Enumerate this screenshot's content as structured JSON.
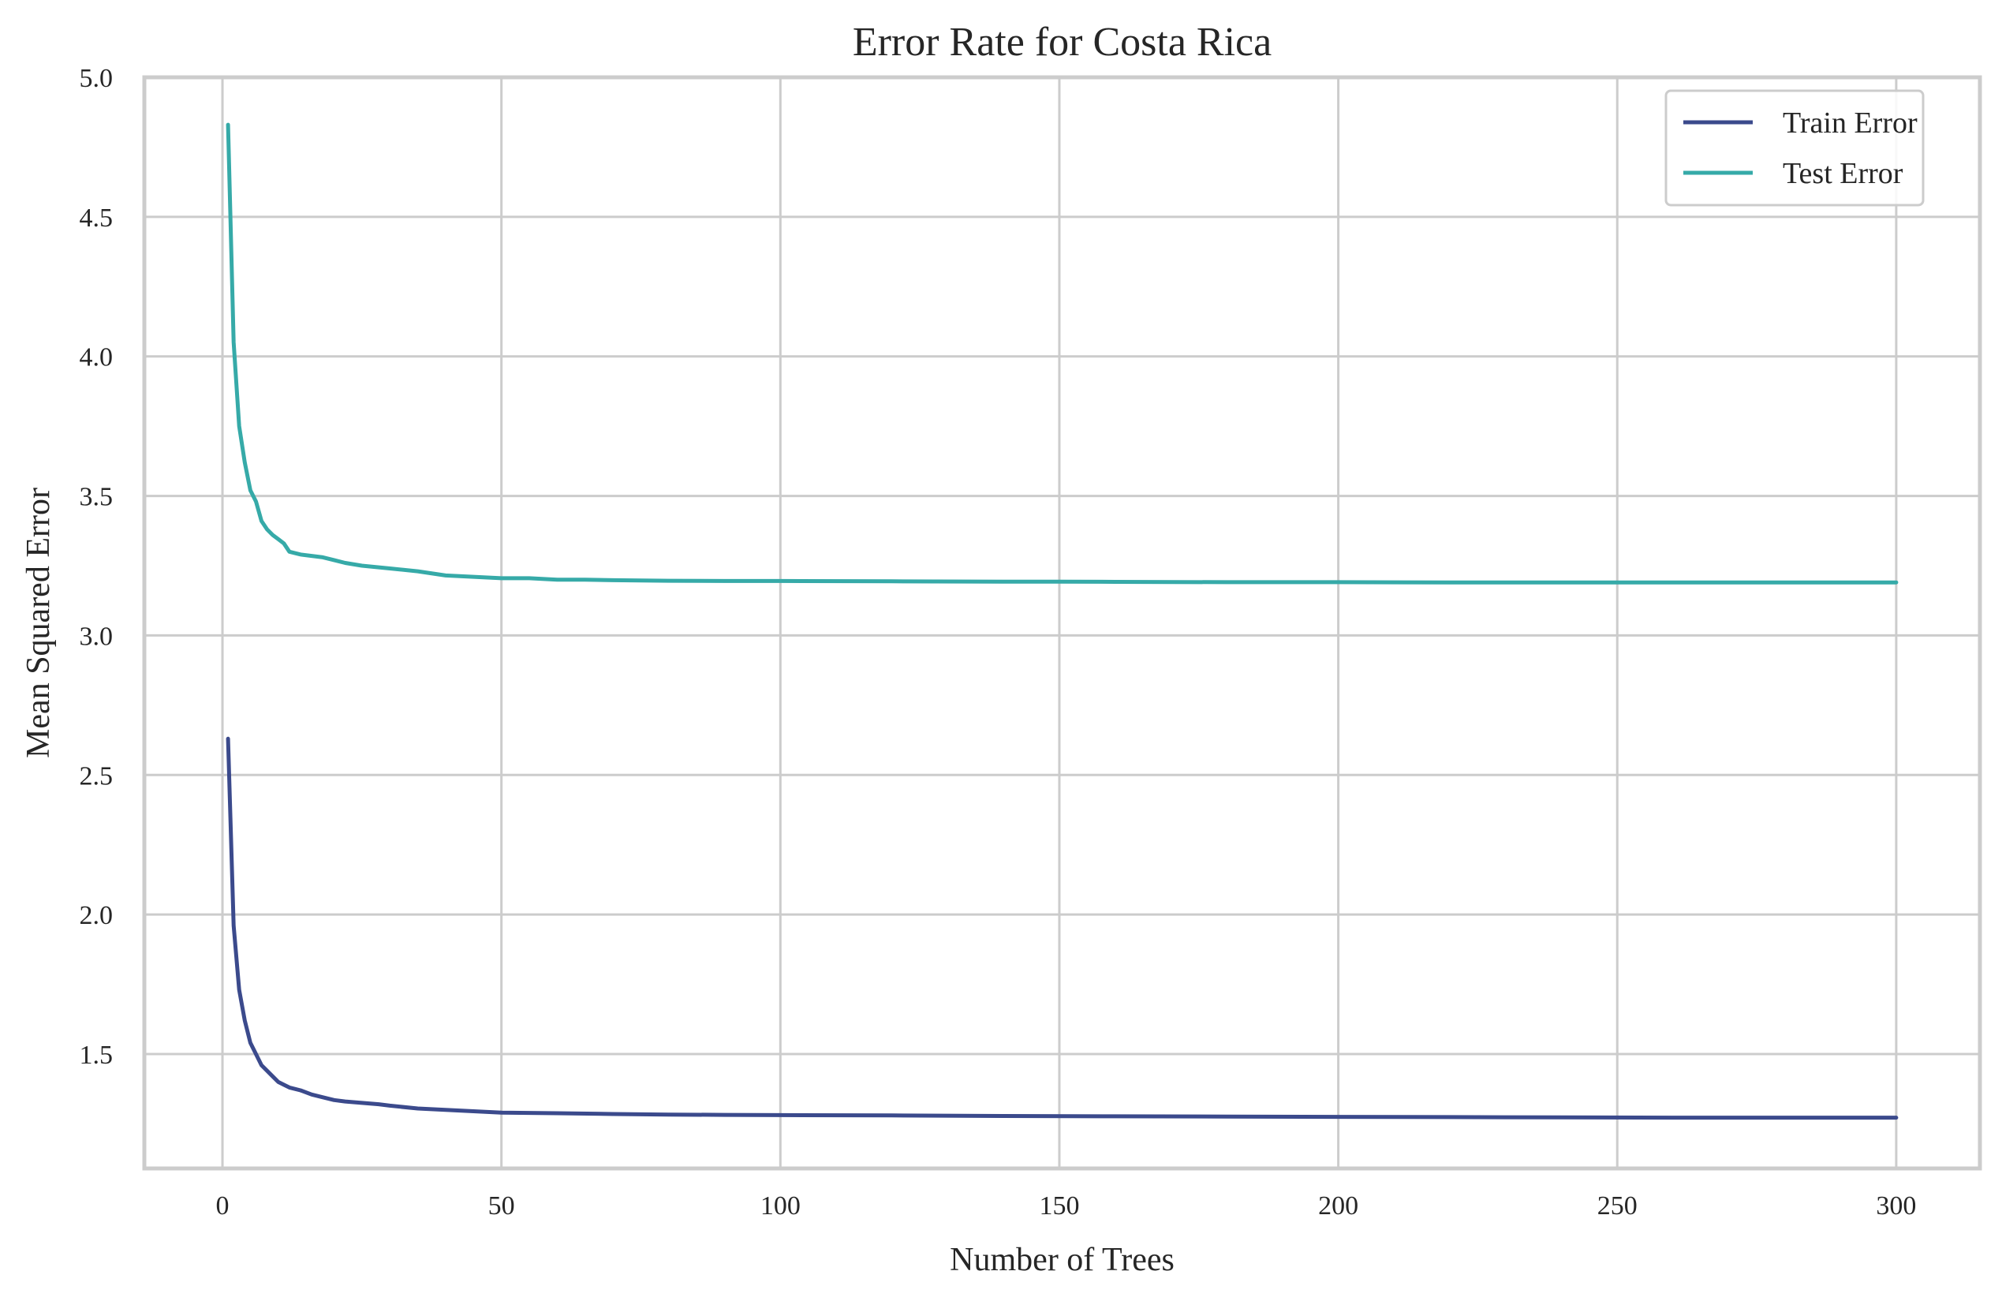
{
  "chart_data": {
    "type": "line",
    "title": "Error Rate for Costa Rica",
    "xlabel": "Number of Trees",
    "ylabel": "Mean Squared Error",
    "xlim": [
      -14,
      315
    ],
    "ylim": [
      1.09,
      5.0
    ],
    "xticks": [
      0,
      50,
      100,
      150,
      200,
      250,
      300
    ],
    "yticks": [
      1.5,
      2.0,
      2.5,
      3.0,
      3.5,
      4.0,
      4.5,
      5.0
    ],
    "ytick_labels": [
      "1.5",
      "2.0",
      "2.5",
      "3.0",
      "3.5",
      "4.0",
      "4.5",
      "5.0"
    ],
    "grid": true,
    "legend_position": "upper right",
    "series": [
      {
        "name": "Train Error",
        "color": "#3b4a8c",
        "points": [
          [
            1,
            2.63
          ],
          [
            2,
            1.96
          ],
          [
            3,
            1.73
          ],
          [
            4,
            1.62
          ],
          [
            5,
            1.54
          ],
          [
            6,
            1.5
          ],
          [
            7,
            1.46
          ],
          [
            8,
            1.44
          ],
          [
            9,
            1.42
          ],
          [
            10,
            1.4
          ],
          [
            11,
            1.39
          ],
          [
            12,
            1.38
          ],
          [
            14,
            1.37
          ],
          [
            16,
            1.355
          ],
          [
            18,
            1.345
          ],
          [
            20,
            1.335
          ],
          [
            22,
            1.33
          ],
          [
            25,
            1.325
          ],
          [
            28,
            1.32
          ],
          [
            30,
            1.315
          ],
          [
            35,
            1.305
          ],
          [
            40,
            1.3
          ],
          [
            45,
            1.295
          ],
          [
            50,
            1.29
          ],
          [
            60,
            1.288
          ],
          [
            70,
            1.285
          ],
          [
            80,
            1.283
          ],
          [
            90,
            1.282
          ],
          [
            100,
            1.281
          ],
          [
            120,
            1.28
          ],
          [
            140,
            1.278
          ],
          [
            160,
            1.277
          ],
          [
            180,
            1.276
          ],
          [
            200,
            1.275
          ],
          [
            220,
            1.274
          ],
          [
            240,
            1.273
          ],
          [
            260,
            1.272
          ],
          [
            280,
            1.272
          ],
          [
            300,
            1.272
          ]
        ]
      },
      {
        "name": "Test Error",
        "color": "#36aaa8",
        "points": [
          [
            1,
            4.83
          ],
          [
            2,
            4.05
          ],
          [
            3,
            3.75
          ],
          [
            4,
            3.62
          ],
          [
            5,
            3.52
          ],
          [
            6,
            3.48
          ],
          [
            7,
            3.41
          ],
          [
            8,
            3.38
          ],
          [
            9,
            3.36
          ],
          [
            10,
            3.345
          ],
          [
            11,
            3.33
          ],
          [
            12,
            3.3
          ],
          [
            14,
            3.29
          ],
          [
            16,
            3.285
          ],
          [
            18,
            3.28
          ],
          [
            20,
            3.27
          ],
          [
            22,
            3.26
          ],
          [
            25,
            3.25
          ],
          [
            30,
            3.24
          ],
          [
            35,
            3.23
          ],
          [
            40,
            3.215
          ],
          [
            45,
            3.21
          ],
          [
            50,
            3.205
          ],
          [
            55,
            3.205
          ],
          [
            60,
            3.2
          ],
          [
            65,
            3.2
          ],
          [
            70,
            3.198
          ],
          [
            80,
            3.196
          ],
          [
            90,
            3.195
          ],
          [
            100,
            3.195
          ],
          [
            120,
            3.194
          ],
          [
            140,
            3.193
          ],
          [
            150,
            3.193
          ],
          [
            160,
            3.192
          ],
          [
            180,
            3.191
          ],
          [
            200,
            3.191
          ],
          [
            220,
            3.19
          ],
          [
            240,
            3.19
          ],
          [
            260,
            3.19
          ],
          [
            280,
            3.19
          ],
          [
            300,
            3.19
          ]
        ]
      }
    ]
  }
}
